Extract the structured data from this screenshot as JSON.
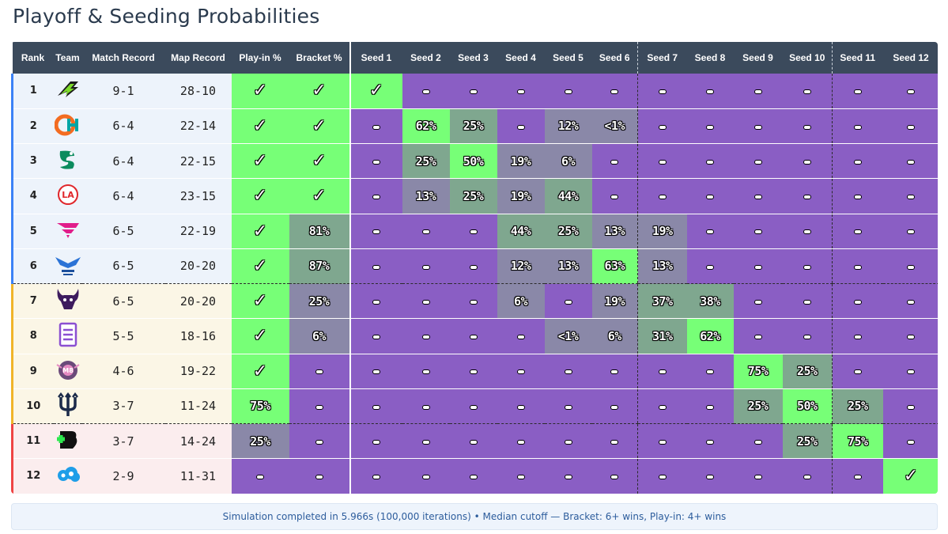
{
  "title": "Playoff & Seeding Probabilities",
  "columns": {
    "rank": "Rank",
    "team": "Team",
    "match_record": "Match Record",
    "map_record": "Map Record",
    "playin": "Play-in %",
    "bracket": "Bracket %",
    "seeds": [
      "Seed 1",
      "Seed 2",
      "Seed 3",
      "Seed 4",
      "Seed 5",
      "Seed 6",
      "Seed 7",
      "Seed 8",
      "Seed 9",
      "Seed 10",
      "Seed 11",
      "Seed 12"
    ]
  },
  "rows": [
    {
      "rank": "1",
      "logo": "optic-logo",
      "match_record": "9-1",
      "map_record": "28-10",
      "playin": "✓",
      "bracket": "✓",
      "seeds": [
        "✓",
        "–",
        "–",
        "–",
        "–",
        "–",
        "–",
        "–",
        "–",
        "–",
        "–",
        "–"
      ]
    },
    {
      "rank": "2",
      "logo": "thieves-logo",
      "match_record": "6-4",
      "map_record": "22-14",
      "playin": "✓",
      "bracket": "✓",
      "seeds": [
        "–",
        "62%",
        "25%",
        "–",
        "12%",
        "<1%",
        "–",
        "–",
        "–",
        "–",
        "–",
        "–"
      ]
    },
    {
      "rank": "3",
      "logo": "surge-logo",
      "match_record": "6-4",
      "map_record": "22-15",
      "playin": "✓",
      "bracket": "✓",
      "seeds": [
        "–",
        "25%",
        "50%",
        "19%",
        "6%",
        "–",
        "–",
        "–",
        "–",
        "–",
        "–",
        "–"
      ]
    },
    {
      "rank": "4",
      "logo": "la-guerrillas-logo",
      "match_record": "6-4",
      "map_record": "23-15",
      "playin": "✓",
      "bracket": "✓",
      "seeds": [
        "–",
        "13%",
        "25%",
        "19%",
        "44%",
        "–",
        "–",
        "–",
        "–",
        "–",
        "–",
        "–"
      ]
    },
    {
      "rank": "5",
      "logo": "faze-logo",
      "match_record": "6-5",
      "map_record": "22-19",
      "playin": "✓",
      "bracket": "81%",
      "seeds": [
        "–",
        "–",
        "–",
        "44%",
        "25%",
        "13%",
        "19%",
        "–",
        "–",
        "–",
        "–",
        "–"
      ]
    },
    {
      "rank": "6",
      "logo": "royal-ravens-logo",
      "match_record": "6-5",
      "map_record": "20-20",
      "playin": "✓",
      "bracket": "87%",
      "seeds": [
        "–",
        "–",
        "–",
        "12%",
        "13%",
        "63%",
        "13%",
        "–",
        "–",
        "–",
        "–",
        "–"
      ]
    },
    {
      "rank": "7",
      "logo": "ultra-logo",
      "match_record": "6-5",
      "map_record": "20-20",
      "playin": "✓",
      "bracket": "25%",
      "seeds": [
        "–",
        "–",
        "–",
        "6%",
        "–",
        "19%",
        "37%",
        "38%",
        "–",
        "–",
        "–",
        "–"
      ]
    },
    {
      "rank": "8",
      "logo": "koi-logo",
      "match_record": "5-5",
      "map_record": "18-16",
      "playin": "✓",
      "bracket": "6%",
      "seeds": [
        "–",
        "–",
        "–",
        "–",
        "<1%",
        "6%",
        "31%",
        "62%",
        "–",
        "–",
        "–",
        "–"
      ]
    },
    {
      "rank": "9",
      "logo": "heretics-logo",
      "match_record": "4-6",
      "map_record": "19-22",
      "playin": "✓",
      "bracket": "–",
      "seeds": [
        "–",
        "–",
        "–",
        "–",
        "–",
        "–",
        "–",
        "–",
        "75%",
        "25%",
        "–",
        "–"
      ]
    },
    {
      "rank": "10",
      "logo": "breach-logo",
      "match_record": "3-7",
      "map_record": "11-24",
      "playin": "75%",
      "bracket": "–",
      "seeds": [
        "–",
        "–",
        "–",
        "–",
        "–",
        "–",
        "–",
        "–",
        "25%",
        "50%",
        "25%",
        "–"
      ]
    },
    {
      "rank": "11",
      "logo": "boston-breach-logo",
      "match_record": "3-7",
      "map_record": "14-24",
      "playin": "25%",
      "bracket": "–",
      "seeds": [
        "–",
        "–",
        "–",
        "–",
        "–",
        "–",
        "–",
        "–",
        "–",
        "25%",
        "75%",
        "–"
      ]
    },
    {
      "rank": "12",
      "logo": "cloud9-logo",
      "match_record": "2-9",
      "map_record": "11-31",
      "playin": "–",
      "bracket": "–",
      "seeds": [
        "–",
        "–",
        "–",
        "–",
        "–",
        "–",
        "–",
        "–",
        "–",
        "–",
        "–",
        "✓"
      ]
    }
  ],
  "colors": {
    "full": "#77ff77",
    "mid": "#7fa78f",
    "low": "#8a88a8",
    "none": "#8a5ec4",
    "header": "#3b4a5c"
  },
  "footer": "Simulation completed in 5.966s (100,000 iterations) • Median cutoff — Bracket: 6+ wins, Play-in: 4+ wins"
}
